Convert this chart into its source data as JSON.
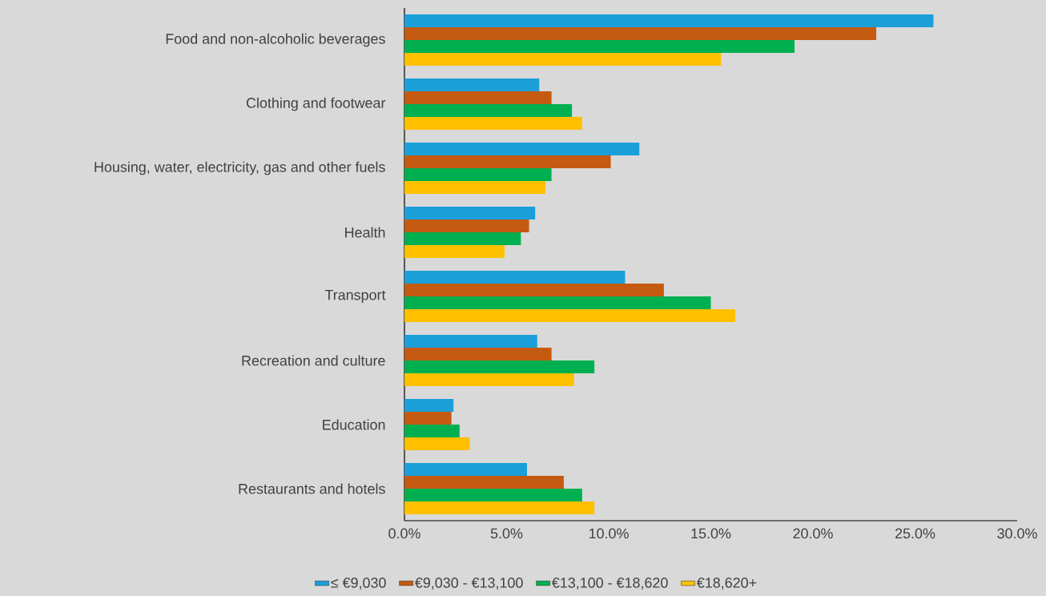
{
  "chart_data": {
    "type": "bar",
    "orientation": "horizontal",
    "categories": [
      "Food and non-alcoholic beverages",
      "Clothing and footwear",
      "Housing, water, electricity, gas and other fuels",
      "Health",
      "Transport",
      "Recreation and culture",
      "Education",
      "Restaurants and hotels"
    ],
    "series": [
      {
        "name": "≤ €9,030",
        "color": "#1a9fd9",
        "values": [
          25.9,
          6.6,
          11.5,
          6.4,
          10.8,
          6.5,
          2.4,
          6.0
        ]
      },
      {
        "name": "€9,030 - €13,100",
        "color": "#c55a11",
        "values": [
          23.1,
          7.2,
          10.1,
          6.1,
          12.7,
          7.2,
          2.3,
          7.8
        ]
      },
      {
        "name": "€13,100 - €18,620",
        "color": "#00b050",
        "values": [
          19.1,
          8.2,
          7.2,
          5.7,
          15.0,
          9.3,
          2.7,
          8.7
        ]
      },
      {
        "name": "€18,620+",
        "color": "#ffc000",
        "values": [
          15.5,
          8.7,
          6.9,
          4.9,
          16.2,
          8.3,
          3.2,
          9.3
        ]
      }
    ],
    "xlim": [
      0,
      30
    ],
    "xticks": [
      {
        "value": 0,
        "label": "0.0%"
      },
      {
        "value": 5,
        "label": "5.0%"
      },
      {
        "value": 10,
        "label": "10.0%"
      },
      {
        "value": 15,
        "label": "15.0%"
      },
      {
        "value": 20,
        "label": "20.0%"
      },
      {
        "value": 25,
        "label": "25.0%"
      },
      {
        "value": 30,
        "label": "30.0%"
      }
    ],
    "grid": false,
    "legend": "bottom"
  }
}
